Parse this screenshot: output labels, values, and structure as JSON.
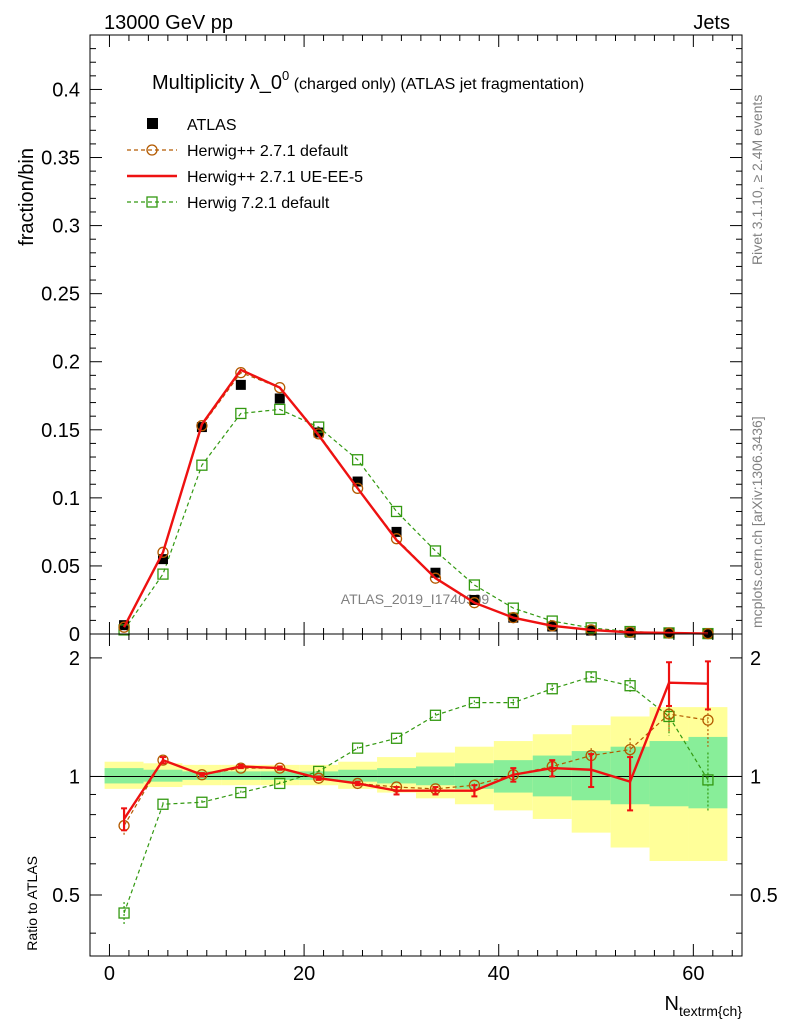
{
  "header": {
    "left": "13000 GeV pp",
    "right": "Jets"
  },
  "side": {
    "rivet": "Rivet 3.1.10, ≥ 2.4M events",
    "mcplots": "mcplots.cern.ch [arXiv:1306.3436]"
  },
  "watermark": "ATLAS_2019_I1740909",
  "colors": {
    "data": "#000000",
    "herwigpp_def": "#b35a00",
    "herwigpp_ue": "#ee1111",
    "herwig7": "#339911",
    "band_outer": "#ffff99",
    "band_inner": "#88ee99"
  },
  "chart_data": [
    {
      "type": "scatter",
      "title_main": "Multiplicity λ_0",
      "title_sup": "0",
      "title_rest": " (charged only) (ATLAS jet fragmentation)",
      "ylabel": "fraction/bin",
      "xlim": [
        -2,
        65
      ],
      "ylim": [
        0,
        0.44
      ],
      "yticks": [
        0,
        0.05,
        0.1,
        0.15,
        0.2,
        0.25,
        0.3,
        0.35,
        0.4
      ],
      "ytick_labels": [
        "0",
        "0.05",
        "0.1",
        "0.15",
        "0.2",
        "0.25",
        "0.3",
        "0.35",
        "0.4"
      ],
      "x": [
        1.5,
        5.5,
        9.5,
        13.5,
        17.5,
        21.5,
        25.5,
        29.5,
        33.5,
        37.5,
        41.5,
        45.5,
        49.5,
        53.5,
        57.5,
        61.5
      ],
      "legend": [
        "ATLAS",
        "Herwig++ 2.7.1 default",
        "Herwig++ 2.7.1 UE-EE-5",
        "Herwig 7.2.1 default"
      ],
      "series": [
        {
          "name": "ATLAS",
          "values": [
            0.0065,
            0.055,
            0.152,
            0.183,
            0.173,
            0.148,
            0.112,
            0.075,
            0.045,
            0.025,
            0.012,
            0.0055,
            0.0025,
            0.001,
            0.0005,
            0.0002
          ]
        },
        {
          "name": "Herwig++ 2.7.1 default",
          "values": [
            0.005,
            0.06,
            0.153,
            0.192,
            0.181,
            0.147,
            0.107,
            0.07,
            0.041,
            0.023,
            0.012,
            0.006,
            0.003,
            0.0013,
            0.0007,
            0.0003
          ]
        },
        {
          "name": "Herwig++ 2.7.1 UE-EE-5",
          "values": [
            0.005,
            0.06,
            0.154,
            0.194,
            0.181,
            0.146,
            0.107,
            0.069,
            0.041,
            0.023,
            0.012,
            0.006,
            0.003,
            0.0012,
            0.0008,
            0.0003
          ]
        },
        {
          "name": "Herwig 7.2.1 default",
          "values": [
            0.003,
            0.044,
            0.124,
            0.162,
            0.165,
            0.152,
            0.128,
            0.09,
            0.061,
            0.036,
            0.019,
            0.0095,
            0.0045,
            0.0018,
            0.0008,
            0.0003
          ]
        }
      ]
    },
    {
      "type": "line",
      "ylabel": "Ratio to ATLAS",
      "xlabel": "N",
      "xlabel_sub": "textrm{ch}",
      "xlim": [
        -2,
        65
      ],
      "ylim": [
        0.35,
        2.3
      ],
      "xticks": [
        0,
        20,
        40,
        60
      ],
      "xtick_labels": [
        "0",
        "20",
        "40",
        "60"
      ],
      "yticks": [
        0.5,
        1,
        2
      ],
      "ytick_labels": [
        "0.5",
        "1",
        "2"
      ],
      "x": [
        1.5,
        5.5,
        9.5,
        13.5,
        17.5,
        21.5,
        25.5,
        29.5,
        33.5,
        37.5,
        41.5,
        45.5,
        49.5,
        53.5,
        57.5,
        61.5
      ],
      "band_inner": [
        [
          0.96,
          1.05
        ],
        [
          0.97,
          1.04
        ],
        [
          0.98,
          1.03
        ],
        [
          0.98,
          1.03
        ],
        [
          0.98,
          1.03
        ],
        [
          0.98,
          1.03
        ],
        [
          0.97,
          1.04
        ],
        [
          0.96,
          1.05
        ],
        [
          0.95,
          1.06
        ],
        [
          0.93,
          1.08
        ],
        [
          0.91,
          1.1
        ],
        [
          0.89,
          1.13
        ],
        [
          0.87,
          1.16
        ],
        [
          0.85,
          1.19
        ],
        [
          0.84,
          1.23
        ],
        [
          0.83,
          1.26
        ]
      ],
      "band_outer": [
        [
          0.93,
          1.09
        ],
        [
          0.94,
          1.08
        ],
        [
          0.95,
          1.07
        ],
        [
          0.95,
          1.07
        ],
        [
          0.95,
          1.07
        ],
        [
          0.95,
          1.07
        ],
        [
          0.93,
          1.09
        ],
        [
          0.91,
          1.12
        ],
        [
          0.88,
          1.15
        ],
        [
          0.85,
          1.19
        ],
        [
          0.82,
          1.23
        ],
        [
          0.78,
          1.28
        ],
        [
          0.72,
          1.35
        ],
        [
          0.66,
          1.42
        ],
        [
          0.61,
          1.5
        ],
        [
          0.61,
          1.5
        ]
      ],
      "series": [
        {
          "name": "Herwig++ 2.7.1 default",
          "values": [
            0.75,
            1.1,
            1.01,
            1.05,
            1.05,
            0.99,
            0.96,
            0.94,
            0.93,
            0.95,
            1.01,
            1.06,
            1.13,
            1.17,
            1.44,
            1.39
          ],
          "errors": [
            0.04,
            0.02,
            0.01,
            0.01,
            0.01,
            0.01,
            0.01,
            0.01,
            0.01,
            0.01,
            0.02,
            0.03,
            0.05,
            0.08,
            0.15,
            0.2
          ]
        },
        {
          "name": "Herwig++ 2.7.1 UE-EE-5",
          "values": [
            0.78,
            1.1,
            1.01,
            1.06,
            1.05,
            0.99,
            0.96,
            0.92,
            0.92,
            0.92,
            1.01,
            1.05,
            1.04,
            0.97,
            1.73,
            1.72
          ],
          "errors": [
            0.05,
            0.02,
            0.01,
            0.01,
            0.01,
            0.01,
            0.01,
            0.02,
            0.02,
            0.03,
            0.04,
            0.05,
            0.1,
            0.15,
            0.22,
            0.24
          ]
        },
        {
          "name": "Herwig 7.2.1 default",
          "values": [
            0.45,
            0.85,
            0.86,
            0.91,
            0.96,
            1.03,
            1.18,
            1.25,
            1.43,
            1.54,
            1.54,
            1.67,
            1.79,
            1.7,
            1.42,
            0.98
          ],
          "errors": [
            0.03,
            0.01,
            0.01,
            0.01,
            0.01,
            0.01,
            0.01,
            0.01,
            0.02,
            0.02,
            0.03,
            0.04,
            0.05,
            0.08,
            0.15,
            0.17
          ]
        }
      ]
    }
  ]
}
